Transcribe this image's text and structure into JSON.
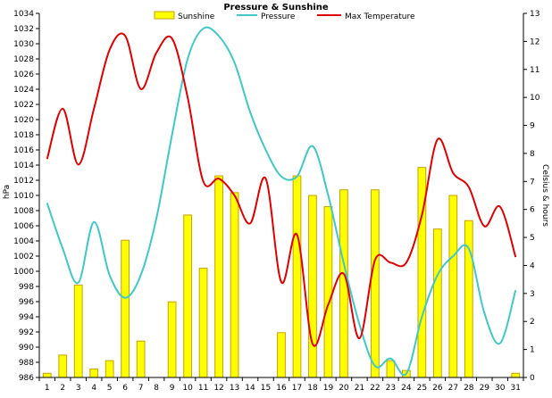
{
  "chart_data": {
    "type": "bar",
    "title": "Pressure & Sunshine",
    "ylabel_left": "hPa",
    "ylabel_right": "Celsius & hours",
    "categories": [
      "1",
      "2",
      "3",
      "4",
      "5",
      "6",
      "7",
      "8",
      "9",
      "10",
      "11",
      "12",
      "13",
      "14",
      "15",
      "16",
      "17",
      "18",
      "19",
      "20",
      "21",
      "22",
      "23",
      "24",
      "25",
      "26",
      "27",
      "28",
      "29",
      "30",
      "31"
    ],
    "ylim_left": [
      986,
      1034
    ],
    "yticks_left": [
      986,
      988,
      990,
      992,
      994,
      996,
      998,
      1000,
      1002,
      1004,
      1006,
      1008,
      1010,
      1012,
      1014,
      1016,
      1018,
      1020,
      1022,
      1024,
      1026,
      1028,
      1030,
      1032,
      1034
    ],
    "ylim_right": [
      0,
      13
    ],
    "yticks_right": [
      0,
      1,
      2,
      3,
      4,
      5,
      6,
      7,
      8,
      9,
      10,
      11,
      12,
      13
    ],
    "grid": false,
    "legend_position": "top",
    "series": [
      {
        "name": "Sunshine",
        "type": "bar",
        "axis": "right",
        "color": "#ffff00",
        "border": "#c8a000",
        "values": [
          0.15,
          0.8,
          3.3,
          0.3,
          0.6,
          4.9,
          1.3,
          0,
          2.7,
          5.8,
          3.9,
          7.2,
          6.6,
          0,
          0,
          1.6,
          7.2,
          6.5,
          6.1,
          6.7,
          0,
          6.7,
          0.6,
          0.25,
          7.5,
          5.3,
          6.5,
          5.6,
          0,
          0,
          0.15
        ]
      },
      {
        "name": "Pressure",
        "type": "line",
        "axis": "left",
        "color": "#40c8c8",
        "values": [
          1009,
          1003,
          998.5,
          1006.5,
          999.5,
          996.5,
          999.5,
          1007,
          1018,
          1028,
          1032,
          1031,
          1027.5,
          1021,
          1016,
          1012.5,
          1012.5,
          1016.5,
          1010,
          1001,
          993,
          987.5,
          988.5,
          986.5,
          994,
          999.5,
          1002,
          1003,
          994.5,
          990.5,
          997.5
        ]
      },
      {
        "name": "Max Temperature",
        "type": "line",
        "axis": "right",
        "color": "#e00000",
        "values": [
          7.8,
          9.6,
          7.6,
          9.6,
          11.7,
          12.2,
          10.3,
          11.6,
          12.1,
          10.0,
          7.0,
          7.1,
          6.5,
          5.5,
          7.1,
          3.4,
          5.1,
          1.2,
          2.6,
          3.7,
          1.4,
          4.2,
          4.1,
          4.1,
          5.8,
          8.5,
          7.3,
          6.8,
          5.4,
          6.1,
          4.3
        ]
      }
    ]
  }
}
